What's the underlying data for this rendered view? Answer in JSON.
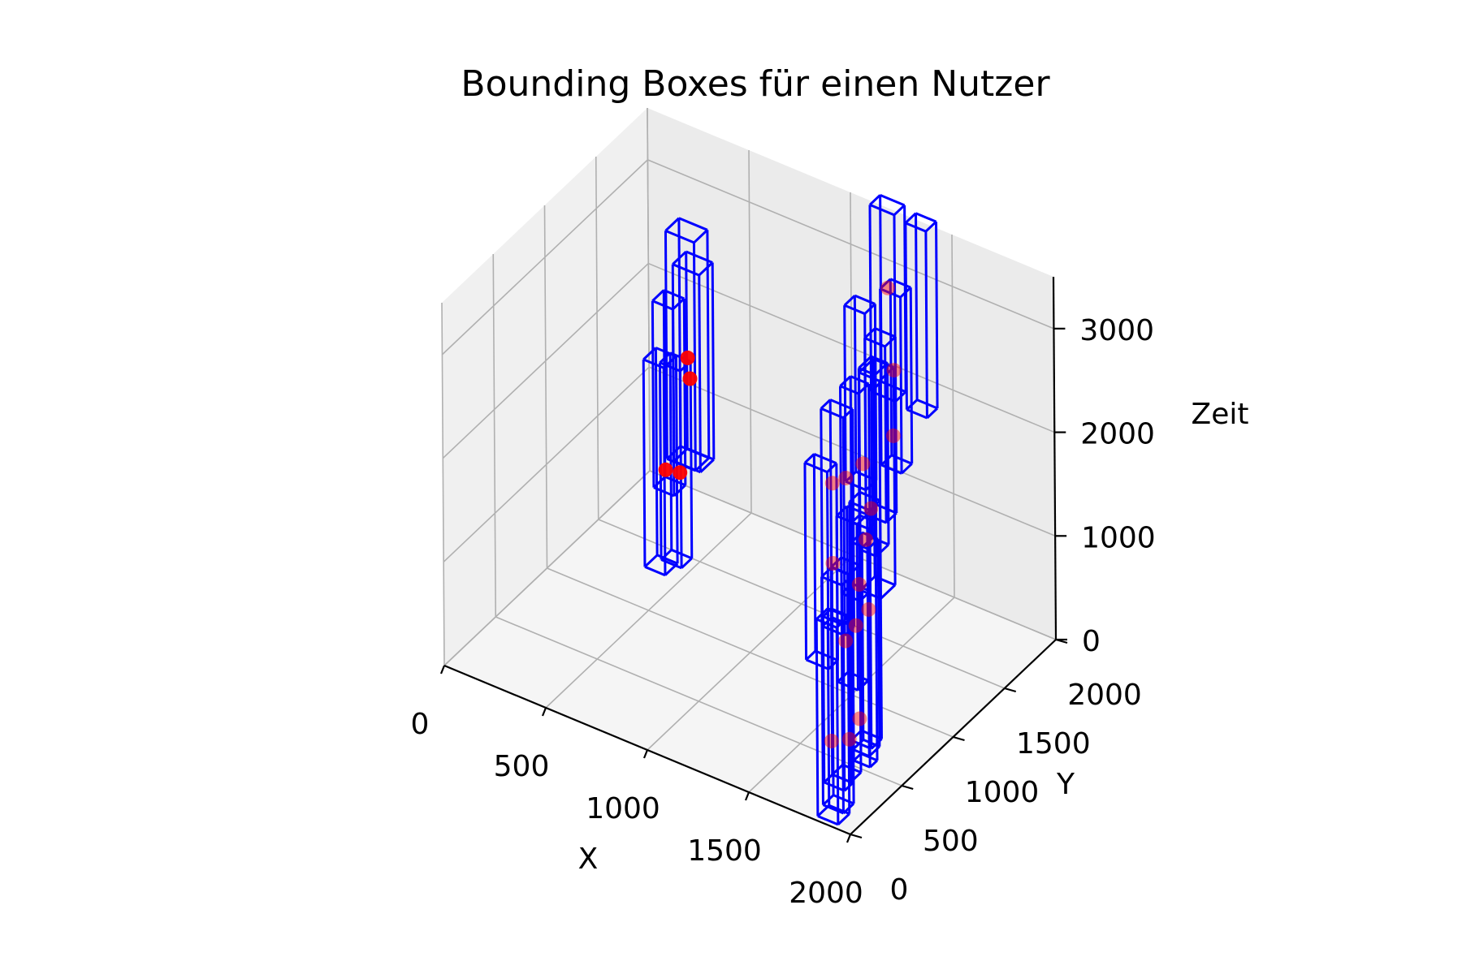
{
  "chart_data": {
    "type": "scatter",
    "title": "Bounding Boxes für einen Nutzer",
    "xlabel": "X",
    "ylabel": "Y",
    "zlabel": "Zeit",
    "xlim": [
      0,
      2000
    ],
    "ylim": [
      0,
      2000
    ],
    "zlim": [
      0,
      3500
    ],
    "xticks": [
      "0",
      "500",
      "1000",
      "1500",
      "2000"
    ],
    "yticks": [
      "0",
      "500",
      "1000",
      "1500",
      "2000"
    ],
    "zticks": [
      "0",
      "1000",
      "2000",
      "3000"
    ],
    "grid": true,
    "box_color": "#0000ff",
    "point_color": "#ff0000",
    "boxes": [
      {
        "x": [
          350,
          480
        ],
        "y": [
          1550,
          1680
        ],
        "z": [
          800,
          2700
        ]
      },
      {
        "x": [
          280,
          420
        ],
        "y": [
          1620,
          1750
        ],
        "z": [
          700,
          2900
        ]
      },
      {
        "x": [
          300,
          400
        ],
        "y": [
          1450,
          1560
        ],
        "z": [
          600,
          2400
        ]
      },
      {
        "x": [
          330,
          430
        ],
        "y": [
          1300,
          1420
        ],
        "z": [
          0,
          2000
        ]
      },
      {
        "x": [
          360,
          460
        ],
        "y": [
          1400,
          1500
        ],
        "z": [
          0,
          1900
        ]
      },
      {
        "x": [
          1300,
          1420
        ],
        "y": [
          1600,
          1700
        ],
        "z": [
          2200,
          4000
        ]
      },
      {
        "x": [
          1450,
          1550
        ],
        "y": [
          1650,
          1750
        ],
        "z": [
          2100,
          3900
        ]
      },
      {
        "x": [
          1450,
          1550
        ],
        "y": [
          1400,
          1500
        ],
        "z": [
          1800,
          3500
        ]
      },
      {
        "x": [
          1350,
          1450
        ],
        "y": [
          1250,
          1350
        ],
        "z": [
          1700,
          3400
        ]
      },
      {
        "x": [
          1500,
          1600
        ],
        "y": [
          1150,
          1250
        ],
        "z": [
          1600,
          3300
        ]
      },
      {
        "x": [
          1720,
          1800
        ],
        "y": [
          660,
          780
        ],
        "z": [
          1900,
          3650
        ]
      },
      {
        "x": [
          1680,
          1780
        ],
        "y": [
          740,
          880
        ],
        "z": [
          1400,
          3500
        ]
      },
      {
        "x": [
          1740,
          1830
        ],
        "y": [
          440,
          540
        ],
        "z": [
          1700,
          3700
        ]
      },
      {
        "x": [
          1680,
          1790
        ],
        "y": [
          370,
          460
        ],
        "z": [
          1400,
          3500
        ]
      },
      {
        "x": [
          1670,
          1780
        ],
        "y": [
          230,
          320
        ],
        "z": [
          1200,
          3100
        ]
      },
      {
        "x": [
          1820,
          1920
        ],
        "y": [
          240,
          340
        ],
        "z": [
          1100,
          2700
        ]
      },
      {
        "x": [
          1700,
          1800
        ],
        "y": [
          600,
          700
        ],
        "z": [
          100,
          2400
        ]
      },
      {
        "x": [
          1740,
          1820
        ],
        "y": [
          540,
          640
        ],
        "z": [
          100,
          2100
        ]
      },
      {
        "x": [
          1760,
          1850
        ],
        "y": [
          300,
          400
        ],
        "z": [
          100,
          2100
        ]
      },
      {
        "x": [
          1820,
          1900
        ],
        "y": [
          390,
          460
        ],
        "z": [
          200,
          2500
        ]
      },
      {
        "x": [
          1800,
          1900
        ],
        "y": [
          130,
          230
        ],
        "z": [
          0,
          2200
        ]
      },
      {
        "x": [
          1760,
          1860
        ],
        "y": [
          220,
          300
        ],
        "z": [
          100,
          1700
        ]
      },
      {
        "x": [
          1860,
          1960
        ],
        "y": [
          -40,
          70
        ],
        "z": [
          100,
          2000
        ]
      }
    ],
    "points": [
      {
        "x": 400,
        "y": 1590,
        "z": 1800
      },
      {
        "x": 370,
        "y": 1670,
        "z": 1500
      },
      {
        "x": 390,
        "y": 1390,
        "z": 900
      },
      {
        "x": 430,
        "y": 1450,
        "z": 850
      },
      {
        "x": 1360,
        "y": 1650,
        "z": 3200
      },
      {
        "x": 1490,
        "y": 1450,
        "z": 2700
      },
      {
        "x": 1480,
        "y": 1460,
        "z": 2050
      },
      {
        "x": 1420,
        "y": 1280,
        "z": 1900
      },
      {
        "x": 1760,
        "y": 690,
        "z": 2300
      },
      {
        "x": 1780,
        "y": 600,
        "z": 2100
      },
      {
        "x": 1790,
        "y": 390,
        "z": 2900
      },
      {
        "x": 1800,
        "y": 240,
        "z": 3000
      },
      {
        "x": 1790,
        "y": 260,
        "z": 2200
      },
      {
        "x": 1830,
        "y": 400,
        "z": 1500
      },
      {
        "x": 1850,
        "y": 260,
        "z": 1500
      },
      {
        "x": 1730,
        "y": 630,
        "z": 1600
      },
      {
        "x": 1740,
        "y": 700,
        "z": 1300
      },
      {
        "x": 1840,
        "y": 410,
        "z": 600
      },
      {
        "x": 1860,
        "y": 270,
        "z": 550
      },
      {
        "x": 1900,
        "y": 20,
        "z": 800
      }
    ]
  }
}
